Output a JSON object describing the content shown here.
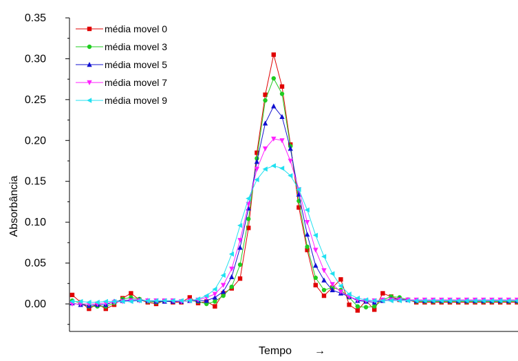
{
  "chart_data": {
    "type": "line",
    "xlabel": "Tempo",
    "xlabel_arrow": "→",
    "ylabel": "Absorbância",
    "ylim": [
      -0.03,
      0.35
    ],
    "yticks": [
      "0.00",
      "0.05",
      "0.10",
      "0.15",
      "0.20",
      "0.25",
      "0.30",
      "0.35"
    ],
    "ytick_values": [
      0.0,
      0.05,
      0.1,
      0.15,
      0.2,
      0.25,
      0.3,
      0.35
    ],
    "xlim": [
      0,
      55
    ],
    "x_ticks_shown": false,
    "grid": false,
    "legend_position": "top-left",
    "x": [
      0,
      1,
      2,
      3,
      4,
      5,
      6,
      7,
      8,
      9,
      10,
      11,
      12,
      13,
      14,
      15,
      16,
      17,
      18,
      19,
      20,
      21,
      22,
      23,
      24,
      25,
      26,
      27,
      28,
      29,
      30,
      31,
      32,
      33,
      34,
      35,
      36,
      37,
      38,
      39,
      40,
      41,
      42,
      43,
      44,
      45,
      46,
      47,
      48,
      49,
      50,
      51,
      52,
      53,
      54,
      55
    ],
    "series": [
      {
        "name": "média movel 0",
        "color": "#e00000",
        "marker": "square",
        "values": [
          0.011,
          0.002,
          -0.006,
          0.0,
          -0.006,
          -0.001,
          0.007,
          0.013,
          0.005,
          0.002,
          0.0,
          0.004,
          0.002,
          0.002,
          0.008,
          0.001,
          0.003,
          -0.003,
          0.013,
          0.019,
          0.031,
          0.093,
          0.185,
          0.256,
          0.305,
          0.266,
          0.195,
          0.118,
          0.066,
          0.023,
          0.01,
          0.02,
          0.03,
          -0.001,
          -0.008,
          0.004,
          -0.007,
          0.013,
          0.009,
          0.005,
          0.005,
          0.002,
          0.002,
          0.002,
          0.002,
          0.002,
          0.002,
          0.002,
          0.002,
          0.002,
          0.002,
          0.002,
          0.002,
          0.002,
          0.002,
          0.002
        ]
      },
      {
        "name": "média movel 3",
        "color": "#20cc20",
        "marker": "circle",
        "values": [
          0.004,
          0.001,
          -0.003,
          -0.003,
          -0.003,
          0.001,
          0.006,
          0.008,
          0.006,
          0.003,
          0.002,
          0.003,
          0.004,
          0.003,
          0.004,
          0.003,
          0.0,
          0.003,
          0.01,
          0.021,
          0.048,
          0.104,
          0.178,
          0.249,
          0.276,
          0.257,
          0.193,
          0.126,
          0.07,
          0.032,
          0.017,
          0.02,
          0.017,
          0.008,
          -0.003,
          -0.004,
          -0.003,
          0.005,
          0.009,
          0.008,
          0.005,
          0.003,
          0.003,
          0.003,
          0.003,
          0.003,
          0.003,
          0.003,
          0.003,
          0.003,
          0.003,
          0.003,
          0.003,
          0.003,
          0.003,
          0.003
        ]
      },
      {
        "name": "média movel 5",
        "color": "#1010d0",
        "marker": "triangle-up",
        "values": [
          0.001,
          -0.001,
          -0.002,
          -0.001,
          -0.001,
          0.003,
          0.004,
          0.005,
          0.005,
          0.004,
          0.003,
          0.003,
          0.003,
          0.003,
          0.004,
          0.004,
          0.004,
          0.008,
          0.015,
          0.033,
          0.069,
          0.117,
          0.174,
          0.221,
          0.242,
          0.229,
          0.19,
          0.134,
          0.085,
          0.047,
          0.029,
          0.017,
          0.013,
          0.009,
          0.004,
          0.003,
          0.002,
          0.004,
          0.006,
          0.006,
          0.005,
          0.004,
          0.004,
          0.004,
          0.004,
          0.004,
          0.004,
          0.004,
          0.004,
          0.004,
          0.004,
          0.004,
          0.004,
          0.004,
          0.004,
          0.004
        ]
      },
      {
        "name": "média movel 7",
        "color": "#ff20ff",
        "marker": "triangle-down",
        "values": [
          0.0,
          0.0,
          0.0,
          0.0,
          0.001,
          0.002,
          0.003,
          0.004,
          0.004,
          0.004,
          0.004,
          0.004,
          0.004,
          0.003,
          0.004,
          0.005,
          0.008,
          0.012,
          0.023,
          0.043,
          0.078,
          0.122,
          0.165,
          0.19,
          0.202,
          0.2,
          0.175,
          0.14,
          0.1,
          0.066,
          0.041,
          0.024,
          0.015,
          0.009,
          0.005,
          0.004,
          0.004,
          0.005,
          0.005,
          0.005,
          0.005,
          0.005,
          0.005,
          0.005,
          0.005,
          0.005,
          0.005,
          0.005,
          0.005,
          0.005,
          0.005,
          0.005,
          0.005,
          0.005,
          0.005,
          0.005
        ]
      },
      {
        "name": "média movel 9",
        "color": "#20e0f0",
        "marker": "triangle-left",
        "values": [
          0.003,
          0.003,
          0.002,
          0.002,
          0.003,
          0.003,
          0.003,
          0.003,
          0.004,
          0.004,
          0.004,
          0.004,
          0.004,
          0.004,
          0.004,
          0.006,
          0.01,
          0.018,
          0.035,
          0.061,
          0.096,
          0.129,
          0.152,
          0.165,
          0.169,
          0.166,
          0.157,
          0.14,
          0.115,
          0.084,
          0.058,
          0.037,
          0.022,
          0.012,
          0.007,
          0.005,
          0.004,
          0.004,
          0.004,
          0.004,
          0.004,
          0.004,
          0.004,
          0.004,
          0.004,
          0.004,
          0.004,
          0.004,
          0.004,
          0.004,
          0.004,
          0.004,
          0.004,
          0.004,
          0.004,
          0.004
        ]
      }
    ]
  }
}
